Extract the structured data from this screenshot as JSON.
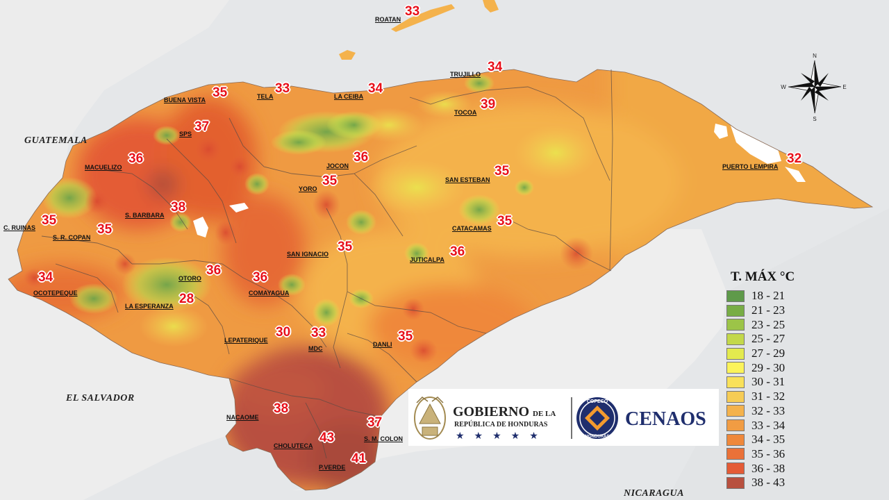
{
  "countries": [
    {
      "id": "guatemala",
      "label": "GUATEMALA"
    },
    {
      "id": "el-salvador",
      "label": "EL SALVADOR"
    },
    {
      "id": "nicaragua",
      "label": "NICARAGUA"
    }
  ],
  "cities": [
    {
      "id": "roatan",
      "name": "ROATAN",
      "temp": "33"
    },
    {
      "id": "trujillo",
      "name": "TRUJILLO",
      "temp": "34"
    },
    {
      "id": "buena-vista",
      "name": "BUENA VISTA",
      "temp": "35"
    },
    {
      "id": "tela",
      "name": "TELA",
      "temp": "33"
    },
    {
      "id": "la-ceiba",
      "name": "LA CEIBA",
      "temp": "34"
    },
    {
      "id": "tocoa",
      "name": "TOCOA",
      "temp": "39"
    },
    {
      "id": "sps",
      "name": "SPS",
      "temp": "37"
    },
    {
      "id": "macuelizo",
      "name": "MACUELIZO",
      "temp": "36"
    },
    {
      "id": "jocon",
      "name": "JOCON",
      "temp": "36"
    },
    {
      "id": "puerto-lempira",
      "name": "PUERTO LEMPIRA",
      "temp": "32"
    },
    {
      "id": "san-esteban",
      "name": "SAN ESTEBAN",
      "temp": "35"
    },
    {
      "id": "yoro",
      "name": "YORO",
      "temp": "35"
    },
    {
      "id": "s-barbara",
      "name": "S. BARBARA",
      "temp": "38"
    },
    {
      "id": "c-ruinas",
      "name": "C. RUINAS",
      "temp": "35"
    },
    {
      "id": "s-r-copan",
      "name": "S. R. COPAN",
      "temp": "35"
    },
    {
      "id": "catacamas",
      "name": "CATACAMAS",
      "temp": "35"
    },
    {
      "id": "san-ignacio",
      "name": "SAN IGNACIO",
      "temp": "35"
    },
    {
      "id": "juticalpa",
      "name": "JUTICALPA",
      "temp": "36"
    },
    {
      "id": "otoro",
      "name": "OTORO",
      "temp": "36"
    },
    {
      "id": "ocotepeque",
      "name": "OCOTEPEQUE",
      "temp": "34"
    },
    {
      "id": "comayagua",
      "name": "COMAYAGUA",
      "temp": "36"
    },
    {
      "id": "la-esperanza",
      "name": "LA ESPERANZA",
      "temp": "28"
    },
    {
      "id": "lepaterique",
      "name": "LEPATERIQUE",
      "temp": "30"
    },
    {
      "id": "mdc",
      "name": "MDC",
      "temp": "33"
    },
    {
      "id": "danli",
      "name": "DANLI",
      "temp": "35"
    },
    {
      "id": "nacaome",
      "name": "NACAOME",
      "temp": "38"
    },
    {
      "id": "s-m-colon",
      "name": "S. M. COLON",
      "temp": "37"
    },
    {
      "id": "choluteca",
      "name": "CHOLUTECA",
      "temp": "43"
    },
    {
      "id": "p-verde",
      "name": "P.VERDE",
      "temp": "41"
    }
  ],
  "legend": {
    "title": "T. MÁX °C",
    "items": [
      {
        "range": "18 - 21",
        "color": "#5f9a4a"
      },
      {
        "range": "21 - 23",
        "color": "#78ad45"
      },
      {
        "range": "23 - 25",
        "color": "#9cc448"
      },
      {
        "range": "25 - 27",
        "color": "#c3d84a"
      },
      {
        "range": "27 - 29",
        "color": "#e3ea4e"
      },
      {
        "range": "29 - 30",
        "color": "#fbf35a"
      },
      {
        "range": "30 - 31",
        "color": "#f9e15a"
      },
      {
        "range": "31 - 32",
        "color": "#f6cc55"
      },
      {
        "range": "32 - 33",
        "color": "#f4b24c"
      },
      {
        "range": "33 - 34",
        "color": "#f19c43"
      },
      {
        "range": "34 - 35",
        "color": "#ef883b"
      },
      {
        "range": "35 - 36",
        "color": "#ea7138"
      },
      {
        "range": "36 - 38",
        "color": "#e45b36"
      },
      {
        "range": "38 - 43",
        "color": "#b8503f"
      }
    ]
  },
  "compass": {
    "n": "N",
    "s": "S",
    "e": "E",
    "w": "W"
  },
  "logos": {
    "gob_title": "GOBIERNO",
    "gob_title_small": "DE LA",
    "gob_subtitle": "REPÚBLICA DE HONDURAS",
    "gob_stars": "★★★★★",
    "copeco": "COPECO",
    "copeco_country": "HONDURAS",
    "cenaos": "CENAOS"
  }
}
